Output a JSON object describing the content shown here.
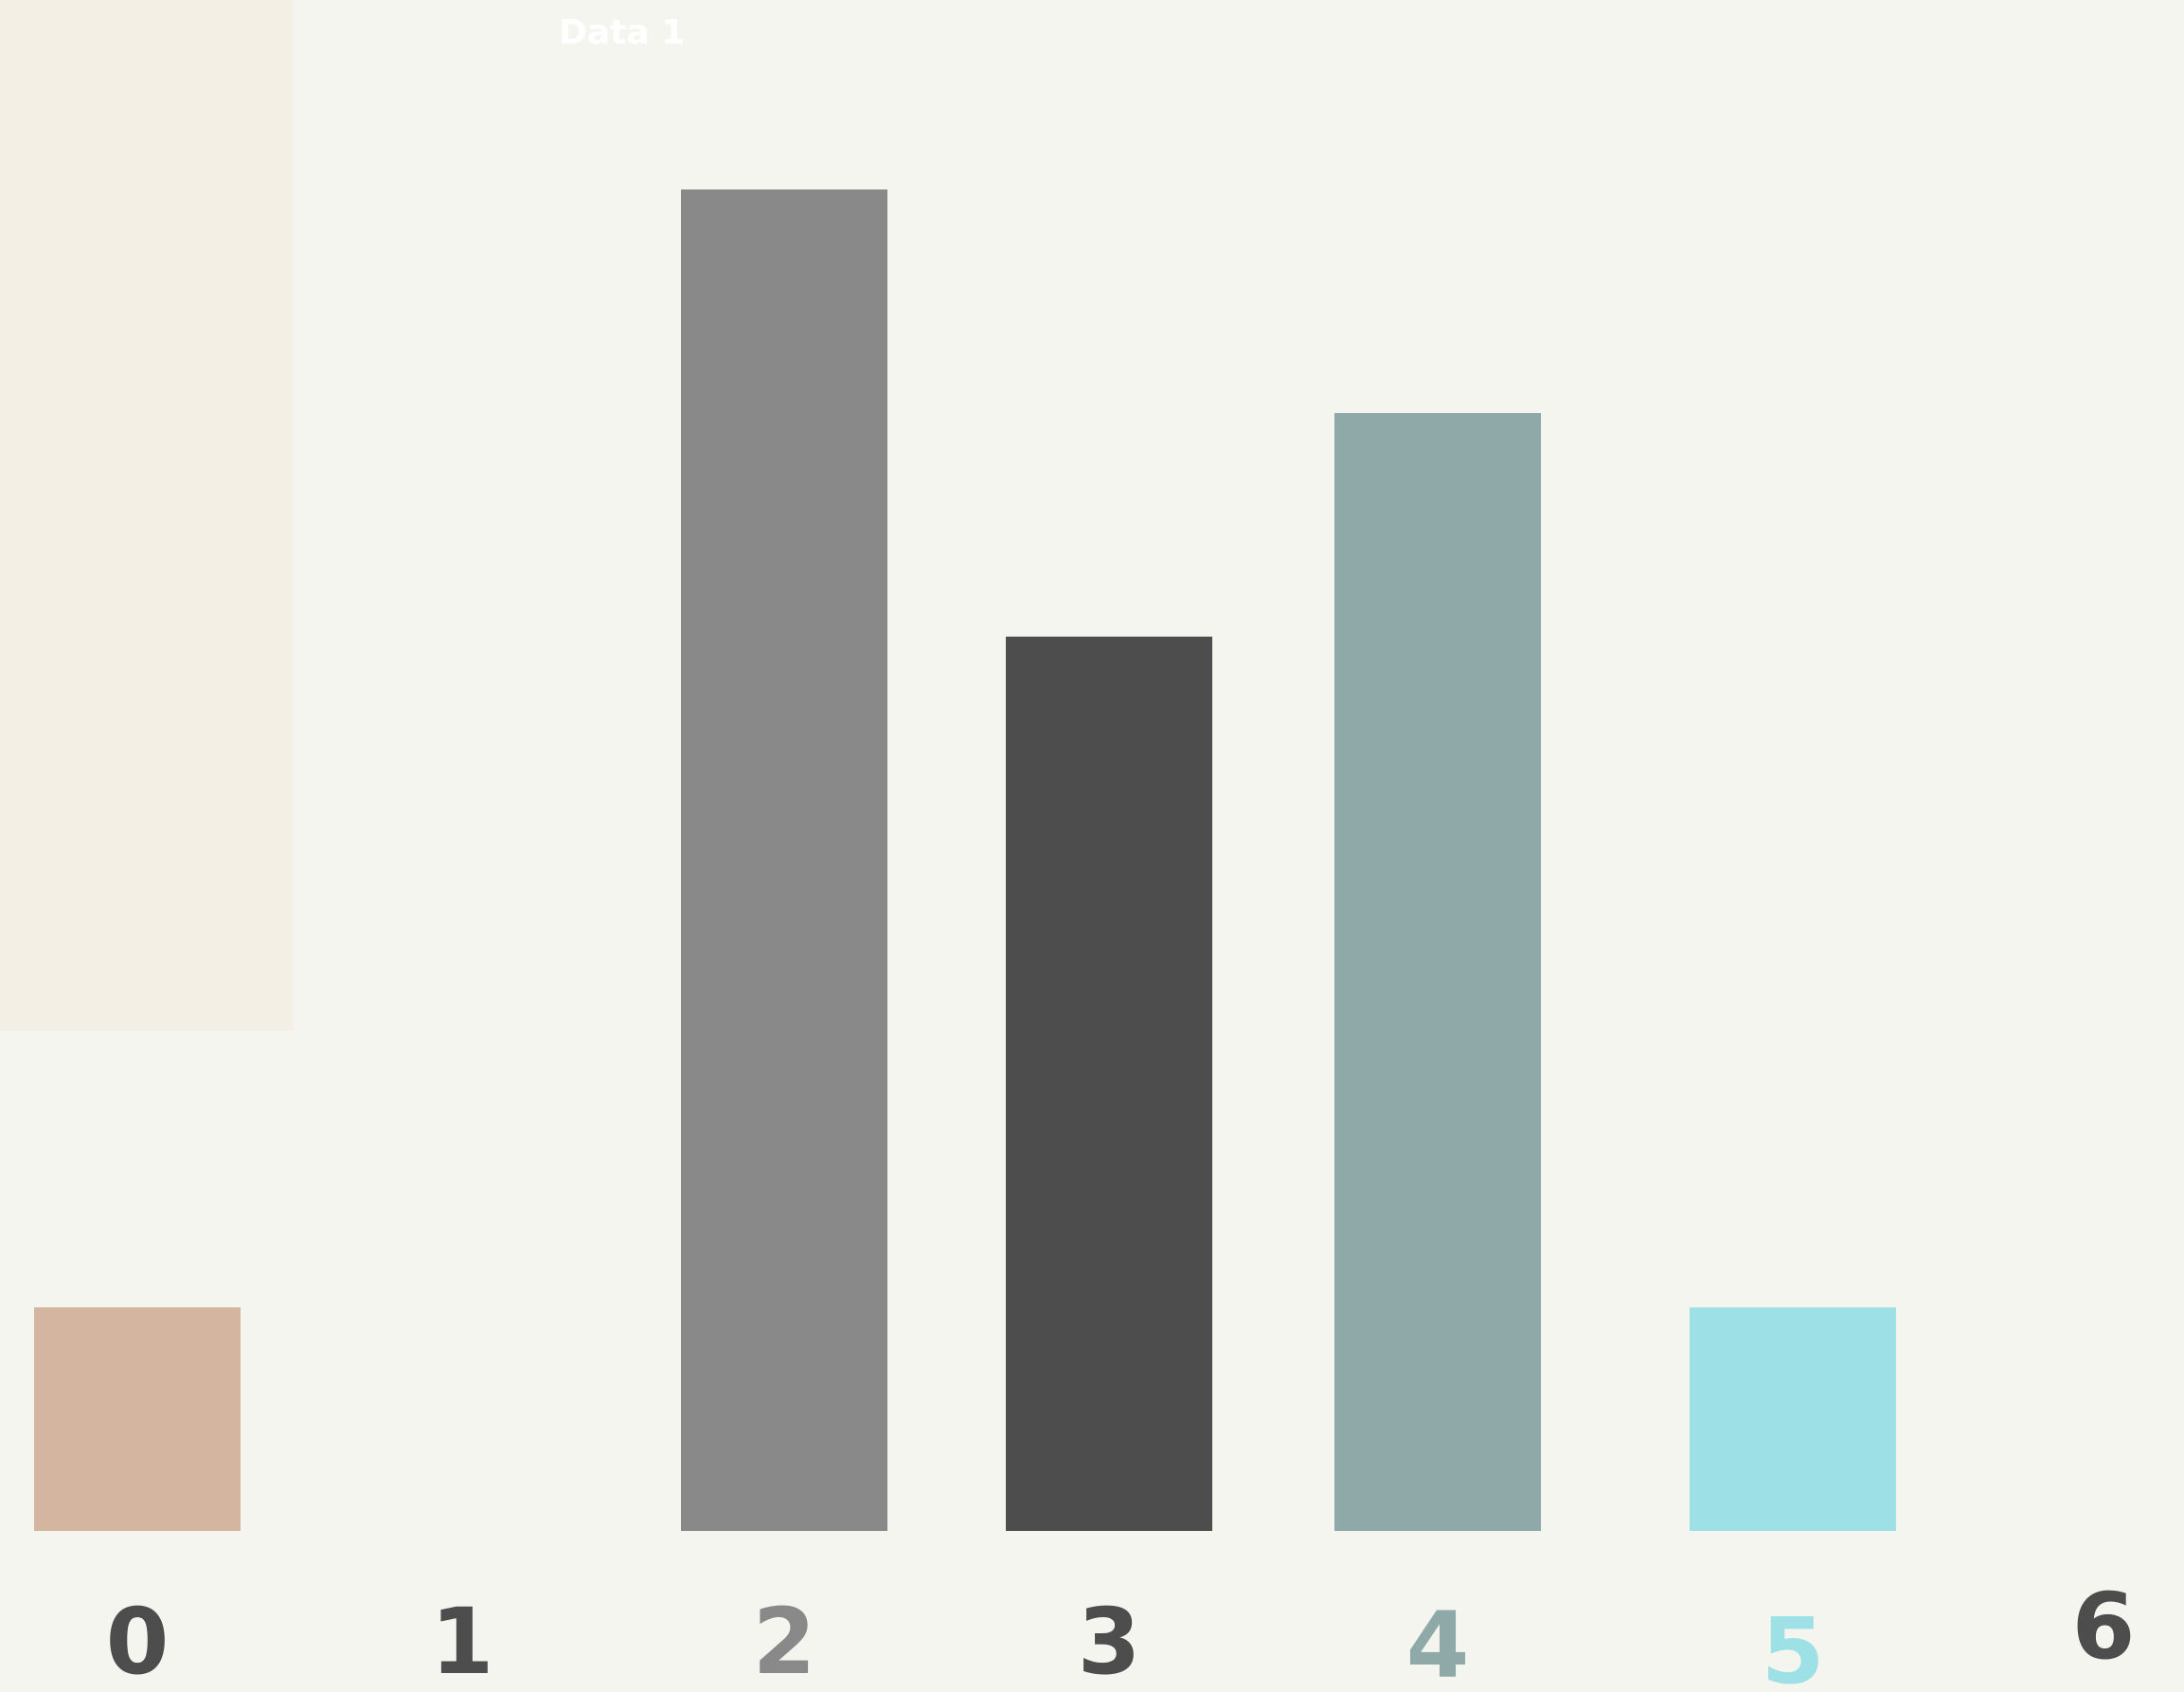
{
  "chart_data": {
    "type": "bar",
    "categories": [
      "0",
      "1",
      "2",
      "3",
      "4",
      "5",
      "6"
    ],
    "series": [
      {
        "name": "Data 1",
        "values": [
          1,
          0,
          6,
          4,
          5,
          1,
          0
        ]
      }
    ],
    "bar_colors": [
      "#d4b5a0",
      "#4d4d4d",
      "#898989",
      "#4d4d4d",
      "#8fa8a8",
      "#9de0e5",
      "#4d4d4d"
    ],
    "tick_label_colors": [
      "#4d4d4d",
      "#4d4d4d",
      "#898989",
      "#4d4d4d",
      "#8fa8a8",
      "#9de0e5",
      "#4d4d4d"
    ],
    "legend_swatch_color": "#f3efe5",
    "background_color": "#f5f5f0",
    "legend": "top-left",
    "grid": false,
    "ylim": [
      0,
      6.5
    ],
    "title": "",
    "xlabel": "",
    "ylabel": ""
  }
}
